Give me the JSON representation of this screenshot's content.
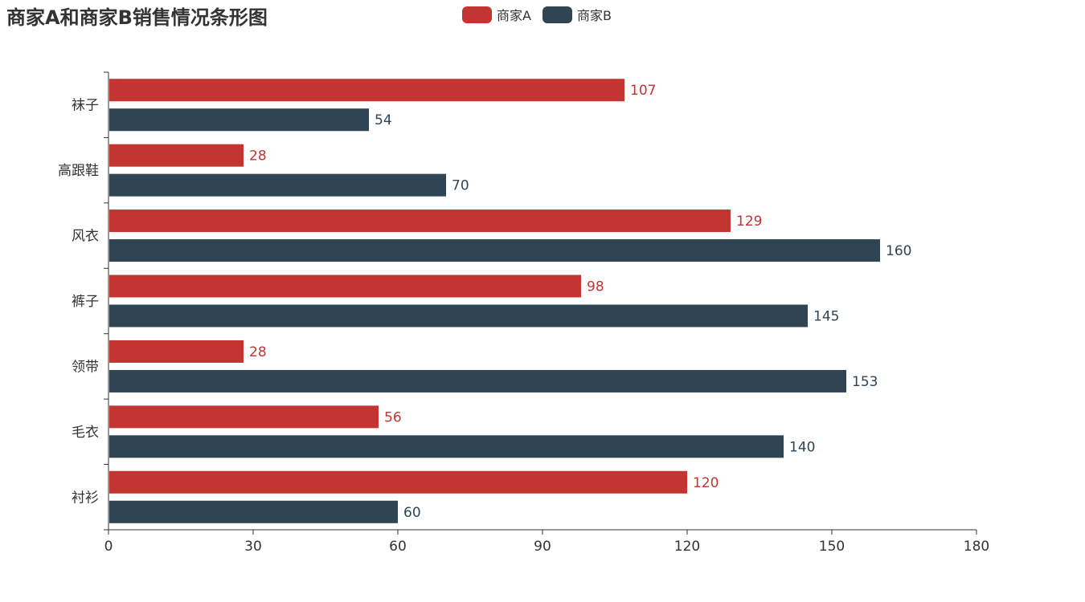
{
  "chart_data": {
    "type": "bar",
    "orientation": "horizontal",
    "title": "商家A和商家B销售情况条形图",
    "categories": [
      "衬衫",
      "毛衣",
      "领带",
      "裤子",
      "风衣",
      "高跟鞋",
      "袜子"
    ],
    "series": [
      {
        "name": "商家A",
        "color": "#c23531",
        "values": [
          120,
          56,
          28,
          98,
          129,
          28,
          107
        ]
      },
      {
        "name": "商家B",
        "color": "#2f4554",
        "values": [
          60,
          140,
          153,
          145,
          160,
          70,
          54
        ]
      }
    ],
    "xlim": [
      0,
      180
    ],
    "xticks": [
      "0",
      "30",
      "60",
      "90",
      "120",
      "150",
      "180"
    ],
    "legend_position": "top-center",
    "grid": false
  }
}
